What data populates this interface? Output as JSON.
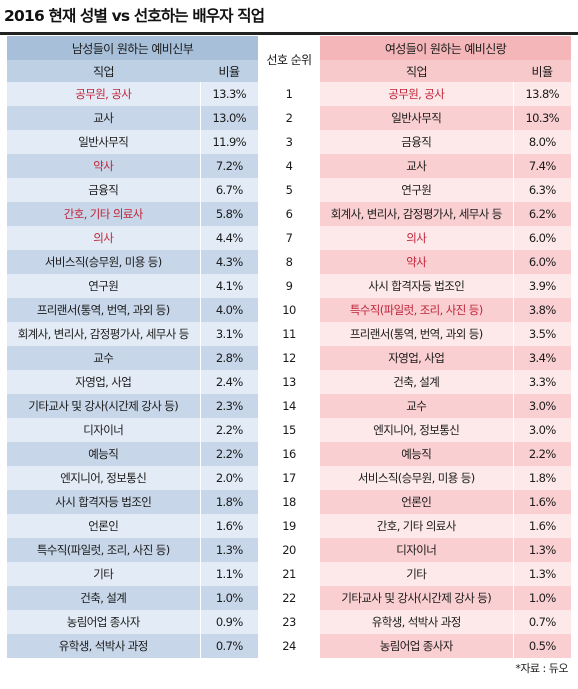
{
  "title": "2016 현재 성별 vs 선호하는 배우자 직업",
  "source": "*자료 : 듀오",
  "header": {
    "male_group": "남성들이 원하는 예비신부",
    "female_group": "여성들이 원하는 예비신랑",
    "rank_label": "선호 순위",
    "job_label": "직업",
    "ratio_label": "비율"
  },
  "colors": {
    "highlight_text": "#c0243a",
    "male_header": "#a7bfd9",
    "female_header": "#f4b6b9",
    "male_row_light": "#e3ecf6",
    "male_row_dark": "#c7d6e8",
    "female_row_light": "#fde9ea",
    "female_row_dark": "#f9cfd1"
  },
  "chart_data": {
    "type": "table",
    "title": "2016 현재 성별 vs 선호하는 배우자 직업",
    "columns": [
      "직업",
      "비율",
      "선호 순위",
      "직업",
      "비율"
    ],
    "ranks": [
      "1",
      "2",
      "3",
      "4",
      "5",
      "6",
      "7",
      "8",
      "9",
      "10",
      "11",
      "12",
      "13",
      "14",
      "15",
      "16",
      "17",
      "18",
      "19",
      "20",
      "21",
      "22",
      "23",
      "24"
    ],
    "male_prefers": [
      {
        "job": "공무원, 공사",
        "pct": "13.3%",
        "highlight": true
      },
      {
        "job": "교사",
        "pct": "13.0%",
        "highlight": false
      },
      {
        "job": "일반사무직",
        "pct": "11.9%",
        "highlight": false
      },
      {
        "job": "약사",
        "pct": "7.2%",
        "highlight": true
      },
      {
        "job": "금융직",
        "pct": "6.7%",
        "highlight": false
      },
      {
        "job": "간호, 기타 의료사",
        "pct": "5.8%",
        "highlight": true
      },
      {
        "job": "의사",
        "pct": "4.4%",
        "highlight": true
      },
      {
        "job": "서비스직(승무원, 미용 등)",
        "pct": "4.3%",
        "highlight": false
      },
      {
        "job": "연구원",
        "pct": "4.1%",
        "highlight": false
      },
      {
        "job": "프리랜서(통역, 번역, 과외 등)",
        "pct": "4.0%",
        "highlight": false
      },
      {
        "job": "회계사, 변리사, 감정평가사, 세무사 등",
        "pct": "3.1%",
        "highlight": false
      },
      {
        "job": "교수",
        "pct": "2.8%",
        "highlight": false
      },
      {
        "job": "자영업, 사업",
        "pct": "2.4%",
        "highlight": false
      },
      {
        "job": "기타교사 및 강사(시간제 강사 등)",
        "pct": "2.3%",
        "highlight": false
      },
      {
        "job": "디자이너",
        "pct": "2.2%",
        "highlight": false
      },
      {
        "job": "예능직",
        "pct": "2.2%",
        "highlight": false
      },
      {
        "job": "엔지니어, 정보통신",
        "pct": "2.0%",
        "highlight": false
      },
      {
        "job": "사시 합격자등 법조인",
        "pct": "1.8%",
        "highlight": false
      },
      {
        "job": "언론인",
        "pct": "1.6%",
        "highlight": false
      },
      {
        "job": "특수직(파일럿, 조리, 사진 등)",
        "pct": "1.3%",
        "highlight": false
      },
      {
        "job": "기타",
        "pct": "1.1%",
        "highlight": false
      },
      {
        "job": "건축, 설계",
        "pct": "1.0%",
        "highlight": false
      },
      {
        "job": "농림어업 종사자",
        "pct": "0.9%",
        "highlight": false
      },
      {
        "job": "유학생, 석박사 과정",
        "pct": "0.7%",
        "highlight": false
      }
    ],
    "female_prefers": [
      {
        "job": "공무원, 공사",
        "pct": "13.8%",
        "highlight": true
      },
      {
        "job": "일반사무직",
        "pct": "10.3%",
        "highlight": false
      },
      {
        "job": "금융직",
        "pct": "8.0%",
        "highlight": false
      },
      {
        "job": "교사",
        "pct": "7.4%",
        "highlight": false
      },
      {
        "job": "연구원",
        "pct": "6.3%",
        "highlight": false
      },
      {
        "job": "회계사, 변리사, 감정평가사, 세무사 등",
        "pct": "6.2%",
        "highlight": false
      },
      {
        "job": "의사",
        "pct": "6.0%",
        "highlight": true
      },
      {
        "job": "약사",
        "pct": "6.0%",
        "highlight": true
      },
      {
        "job": "사시 합격자등 법조인",
        "pct": "3.9%",
        "highlight": false
      },
      {
        "job": "특수직(파일럿, 조리, 사진 등)",
        "pct": "3.8%",
        "highlight": true
      },
      {
        "job": "프리랜서(통역, 번역, 과외 등)",
        "pct": "3.5%",
        "highlight": false
      },
      {
        "job": "자영업, 사업",
        "pct": "3.4%",
        "highlight": false
      },
      {
        "job": "건축, 설계",
        "pct": "3.3%",
        "highlight": false
      },
      {
        "job": "교수",
        "pct": "3.0%",
        "highlight": false
      },
      {
        "job": "엔지니어, 정보통신",
        "pct": "3.0%",
        "highlight": false
      },
      {
        "job": "예능직",
        "pct": "2.2%",
        "highlight": false
      },
      {
        "job": "서비스직(승무원, 미용 등)",
        "pct": "1.8%",
        "highlight": false
      },
      {
        "job": "언론인",
        "pct": "1.6%",
        "highlight": false
      },
      {
        "job": "간호, 기타 의료사",
        "pct": "1.6%",
        "highlight": false
      },
      {
        "job": "디자이너",
        "pct": "1.3%",
        "highlight": false
      },
      {
        "job": "기타",
        "pct": "1.3%",
        "highlight": false
      },
      {
        "job": "기타교사 및 강사(시간제 강사 등)",
        "pct": "1.0%",
        "highlight": false
      },
      {
        "job": "유학생, 석박사 과정",
        "pct": "0.7%",
        "highlight": false
      },
      {
        "job": "농림어업 종사자",
        "pct": "0.5%",
        "highlight": false
      }
    ]
  }
}
